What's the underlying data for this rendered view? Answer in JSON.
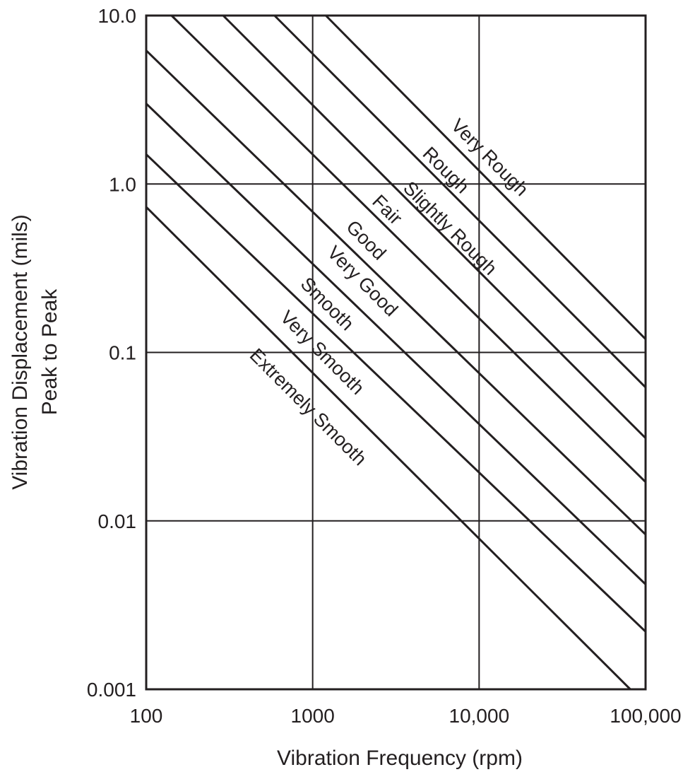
{
  "chart_data": {
    "type": "line",
    "title": "",
    "xlabel": "Vibration Frequency (rpm)",
    "ylabel": [
      "Vibration Displacement (mils)",
      "Peak to Peak"
    ],
    "x_scale": "log",
    "y_scale": "log",
    "xlim": [
      100,
      100000
    ],
    "ylim": [
      0.001,
      10
    ],
    "x_ticks": [
      "100",
      "1000",
      "10,000",
      "100,000"
    ],
    "y_ticks": [
      "10.0",
      "1.0",
      "0.1",
      "0.01",
      "0.001"
    ],
    "grid": true,
    "line_color": "#231f20",
    "zone_labels": [
      "Very Rough",
      "Rough",
      "Slightly Rough",
      "Fair",
      "Good",
      "Very Good",
      "Smooth",
      "Very Smooth",
      "Extremely Smooth"
    ],
    "series": [
      {
        "points": [
          [
            1200,
            10
          ],
          [
            100000,
            0.12
          ]
        ]
      },
      {
        "points": [
          [
            590,
            10
          ],
          [
            100000,
            0.062
          ]
        ]
      },
      {
        "points": [
          [
            290,
            10
          ],
          [
            100000,
            0.031
          ]
        ]
      },
      {
        "points": [
          [
            142,
            10
          ],
          [
            100000,
            0.017
          ]
        ]
      },
      {
        "points": [
          [
            100,
            6.2
          ],
          [
            100000,
            0.0083
          ]
        ]
      },
      {
        "points": [
          [
            100,
            3.0
          ],
          [
            100000,
            0.0042
          ]
        ]
      },
      {
        "points": [
          [
            100,
            1.5
          ],
          [
            100000,
            0.0022
          ]
        ]
      },
      {
        "points": [
          [
            100,
            0.73
          ],
          [
            81000,
            0.001
          ]
        ]
      }
    ]
  }
}
